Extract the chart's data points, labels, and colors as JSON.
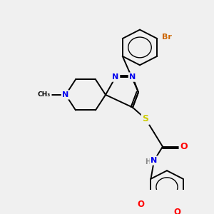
{
  "bg_color": "#f0f0f0",
  "bond_color": "#000000",
  "atom_colors": {
    "N": "#0000ee",
    "S": "#cccc00",
    "O": "#ff0000",
    "Br": "#cc6600",
    "H": "#888888",
    "C": "#000000"
  },
  "font_size": 8.0,
  "title": ""
}
